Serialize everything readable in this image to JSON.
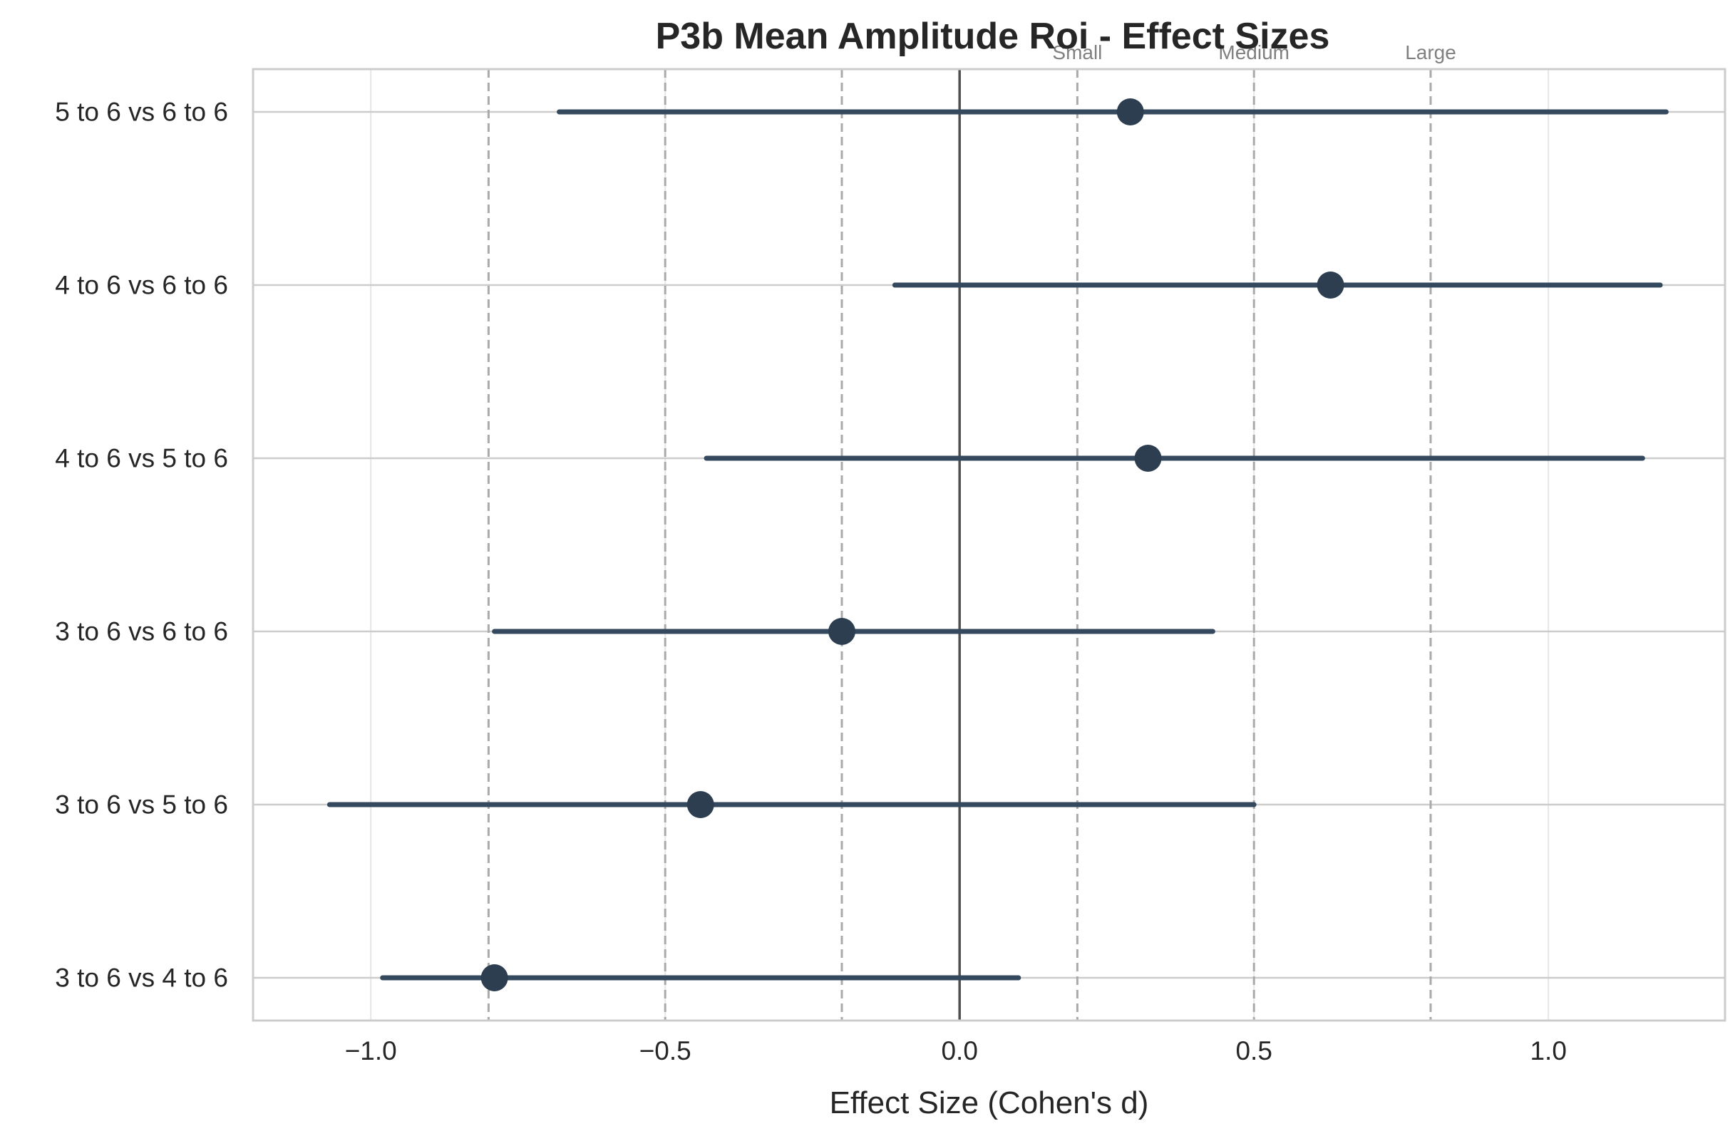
{
  "chart_data": {
    "type": "forest",
    "title": "P3b Mean Amplitude Roi - Effect Sizes",
    "xlabel": "Effect Size (Cohen's d)",
    "ylabel": "",
    "xlim": [
      -1.2,
      1.3
    ],
    "xticks": [
      -1.0,
      -0.5,
      0.0,
      0.5,
      1.0
    ],
    "xtick_labels": [
      "−1.0",
      "−0.5",
      "0.0",
      "0.5",
      "1.0"
    ],
    "grid": true,
    "reference_line": 0.0,
    "threshold_lines": [
      -0.8,
      -0.5,
      -0.2,
      0.2,
      0.5,
      0.8
    ],
    "threshold_labels": [
      {
        "x": 0.2,
        "text": "Small"
      },
      {
        "x": 0.5,
        "text": "Medium"
      },
      {
        "x": 0.8,
        "text": "Large"
      }
    ],
    "categories": [
      "5 to 6 vs 6 to 6",
      "4 to 6 vs 6 to 6",
      "4 to 6 vs 5 to 6",
      "3 to 6 vs 6 to 6",
      "3 to 6 vs 5 to 6",
      "3 to 6 vs 4 to 6"
    ],
    "estimates": [
      0.29,
      0.63,
      0.32,
      -0.2,
      -0.44,
      -0.79
    ],
    "ci_lower": [
      -0.68,
      -0.11,
      -0.43,
      -0.79,
      -1.07,
      -0.98
    ],
    "ci_upper": [
      1.2,
      1.19,
      1.16,
      0.43,
      0.5,
      0.1
    ],
    "colors": {
      "marker": "#2c3e50",
      "ci": "#34495e",
      "grid": "#cccccc",
      "threshold": "#aaaaaa",
      "zero_line": "#333333",
      "text": "#262626",
      "threshold_text": "#808080"
    }
  }
}
